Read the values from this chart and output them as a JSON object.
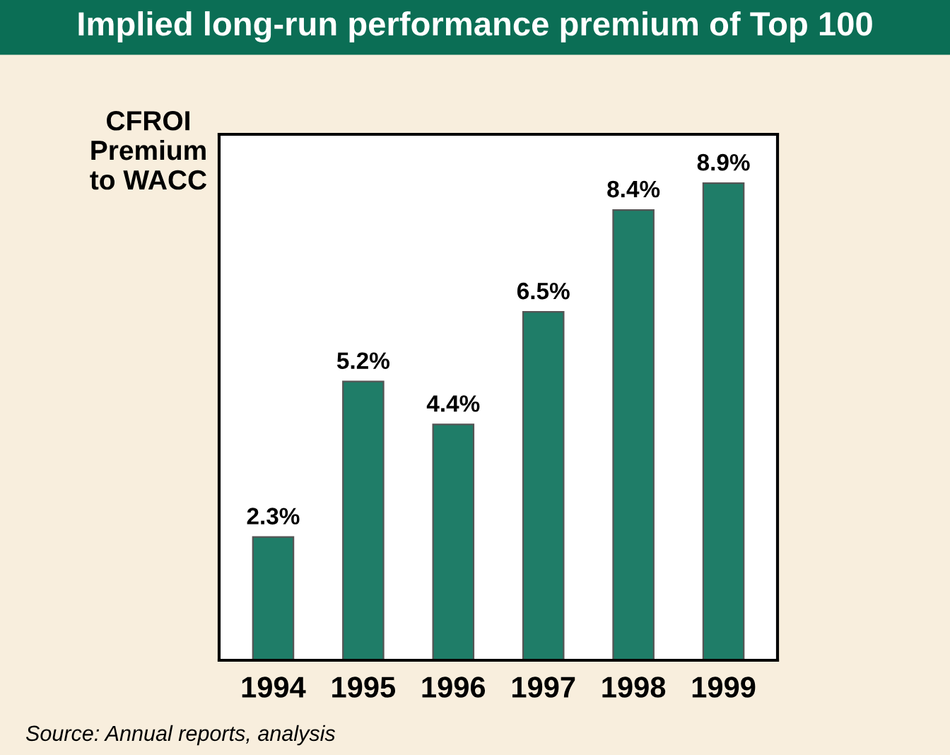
{
  "chart_data": {
    "type": "bar",
    "title": "Implied long-run performance premium of Top 100",
    "ylabel": "CFROI\nPremium\nto WACC",
    "categories": [
      "1994",
      "1995",
      "1996",
      "1997",
      "1998",
      "1999"
    ],
    "values": [
      2.3,
      5.2,
      4.4,
      6.5,
      8.4,
      8.9
    ],
    "value_labels": [
      "2.3%",
      "5.2%",
      "4.4%",
      "6.5%",
      "8.4%",
      "8.9%"
    ],
    "color": "#1f7d68",
    "annotations": [
      "Source: Annual reports, analysis"
    ]
  }
}
